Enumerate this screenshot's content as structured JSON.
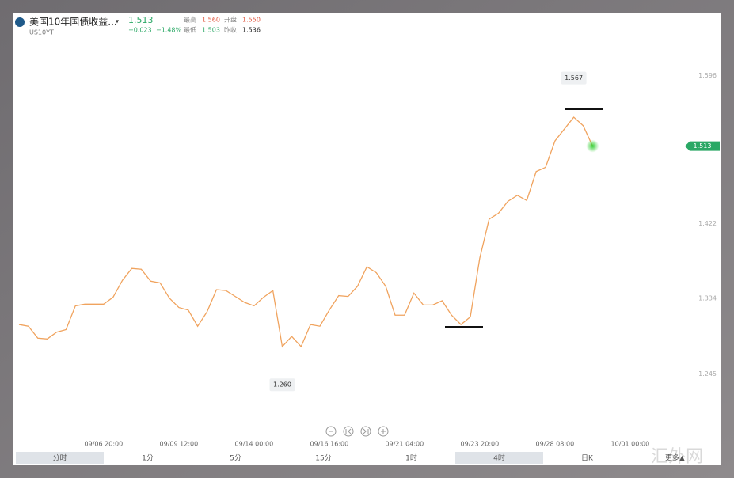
{
  "header": {
    "title": "美国10年国债收益...",
    "symbol": "US10YT",
    "price": "1.513",
    "change": "−0.023",
    "change_pct": "−1.48%",
    "stats": [
      {
        "label": "最高",
        "value": "1.560"
      },
      {
        "label": "开盘",
        "value": "1.550"
      },
      {
        "label": "最低",
        "value": "1.503"
      },
      {
        "label": "昨收",
        "value": "1.536"
      }
    ]
  },
  "chart_data": {
    "type": "line",
    "color": "#f0a35e",
    "categories": [
      null,
      null,
      null,
      null,
      null,
      null,
      null,
      null,
      null,
      "09/06 20:00",
      null,
      null,
      null,
      null,
      null,
      null,
      null,
      "09/09 12:00",
      null,
      null,
      null,
      null,
      null,
      null,
      null,
      "09/14 00:00",
      null,
      null,
      null,
      null,
      null,
      null,
      null,
      "09/16 16:00",
      null,
      null,
      null,
      null,
      null,
      null,
      null,
      "09/21 04:00",
      null,
      null,
      null,
      null,
      null,
      null,
      null,
      "09/23 20:00",
      null,
      null,
      null,
      null,
      null,
      null,
      null,
      "09/28 08:00",
      null,
      null,
      null,
      null,
      null,
      null,
      null,
      "10/01 00:00"
    ],
    "values": [
      1.303,
      1.301,
      1.287,
      1.286,
      1.294,
      1.297,
      1.325,
      1.327,
      1.327,
      1.327,
      1.335,
      1.355,
      1.369,
      1.368,
      1.354,
      1.352,
      1.334,
      1.323,
      1.32,
      1.301,
      1.318,
      1.344,
      1.343,
      1.336,
      1.329,
      1.325,
      1.335,
      1.343,
      1.277,
      1.289,
      1.277,
      1.303,
      1.301,
      1.32,
      1.337,
      1.336,
      1.348,
      1.371,
      1.364,
      1.348,
      1.314,
      1.314,
      1.34,
      1.326,
      1.326,
      1.331,
      1.314,
      1.303,
      1.312,
      1.381,
      1.427,
      1.434,
      1.448,
      1.455,
      1.449,
      1.483,
      1.488,
      1.519,
      1.533,
      1.547,
      1.537,
      1.513,
      null,
      null,
      null,
      null
    ],
    "ylim": [
      1.182,
      1.629
    ],
    "yticks": [
      1.245,
      1.334,
      1.422,
      1.596
    ],
    "grid": false,
    "annotations": [
      {
        "value": 1.567,
        "label": "1.567"
      },
      {
        "value": 1.26,
        "label": "1.260"
      }
    ]
  },
  "toolbar": {
    "intervals": [
      "分时",
      "1分",
      "5分",
      "15分",
      "1时",
      "4时",
      "日K",
      "更多▲"
    ],
    "selected": [
      0,
      5
    ]
  },
  "watermark": "汇外网"
}
